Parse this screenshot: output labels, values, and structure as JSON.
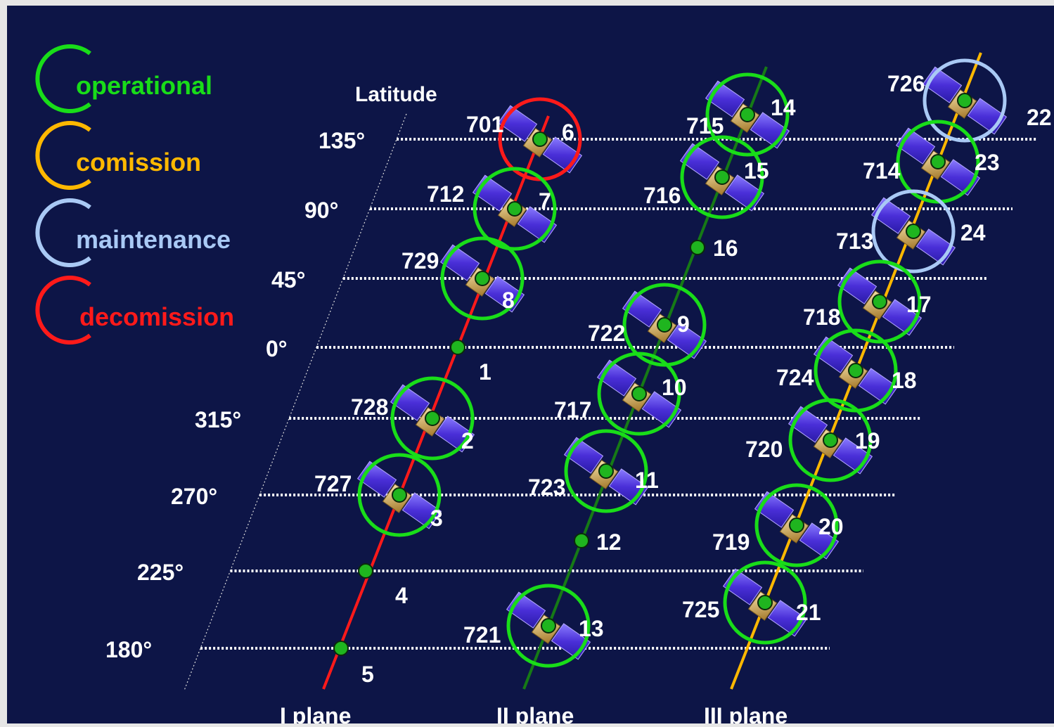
{
  "colors": {
    "background": "#0d1547",
    "operational": "#19dd19",
    "comission": "#ffb800",
    "maintenance": "#a9c9f5",
    "decomission": "#ff1a1a",
    "plane_I": "#ff1a1a",
    "plane_II": "#167a16",
    "plane_III": "#ffb800",
    "slot_node": "#1fb51f",
    "label_text": "#ffffff"
  },
  "legend": [
    {
      "status": "operational",
      "label": "operational"
    },
    {
      "status": "comission",
      "label": "comission"
    },
    {
      "status": "maintenance",
      "label": "maintenance"
    },
    {
      "status": "decomission",
      "label": "decomission"
    }
  ],
  "axis": {
    "title": "Latitude",
    "ticks": [
      "135°",
      "90°",
      "45°",
      "0°",
      "315°",
      "270°",
      "225°",
      "180°"
    ]
  },
  "planes": [
    {
      "name": "I plane",
      "slots": [
        {
          "slot": "6",
          "satellite": "701",
          "status": "decomission"
        },
        {
          "slot": "7",
          "satellite": "712",
          "status": "operational"
        },
        {
          "slot": "8",
          "satellite": "729",
          "status": "operational"
        },
        {
          "slot": "1",
          "satellite": "",
          "status": ""
        },
        {
          "slot": "2",
          "satellite": "728",
          "status": "operational"
        },
        {
          "slot": "3",
          "satellite": "727",
          "status": "operational"
        },
        {
          "slot": "4",
          "satellite": "",
          "status": ""
        },
        {
          "slot": "5",
          "satellite": "",
          "status": ""
        }
      ]
    },
    {
      "name": "II plane",
      "slots": [
        {
          "slot": "14",
          "satellite": "715",
          "status": "operational"
        },
        {
          "slot": "15",
          "satellite": "716",
          "status": "operational"
        },
        {
          "slot": "16",
          "satellite": "",
          "status": ""
        },
        {
          "slot": "9",
          "satellite": "722",
          "status": "operational"
        },
        {
          "slot": "10",
          "satellite": "717",
          "status": "operational"
        },
        {
          "slot": "11",
          "satellite": "723",
          "status": "operational"
        },
        {
          "slot": "12",
          "satellite": "",
          "status": ""
        },
        {
          "slot": "13",
          "satellite": "721",
          "status": "operational"
        }
      ]
    },
    {
      "name": "III plane",
      "slots": [
        {
          "slot": "22",
          "satellite": "726",
          "status": "maintenance"
        },
        {
          "slot": "23",
          "satellite": "714",
          "status": "operational"
        },
        {
          "slot": "24",
          "satellite": "713",
          "status": "maintenance"
        },
        {
          "slot": "17",
          "satellite": "718",
          "status": "operational"
        },
        {
          "slot": "18",
          "satellite": "724",
          "status": "operational"
        },
        {
          "slot": "19",
          "satellite": "720",
          "status": "operational"
        },
        {
          "slot": "20",
          "satellite": "719",
          "status": "operational"
        },
        {
          "slot": "21",
          "satellite": "725",
          "status": "operational"
        }
      ]
    }
  ]
}
